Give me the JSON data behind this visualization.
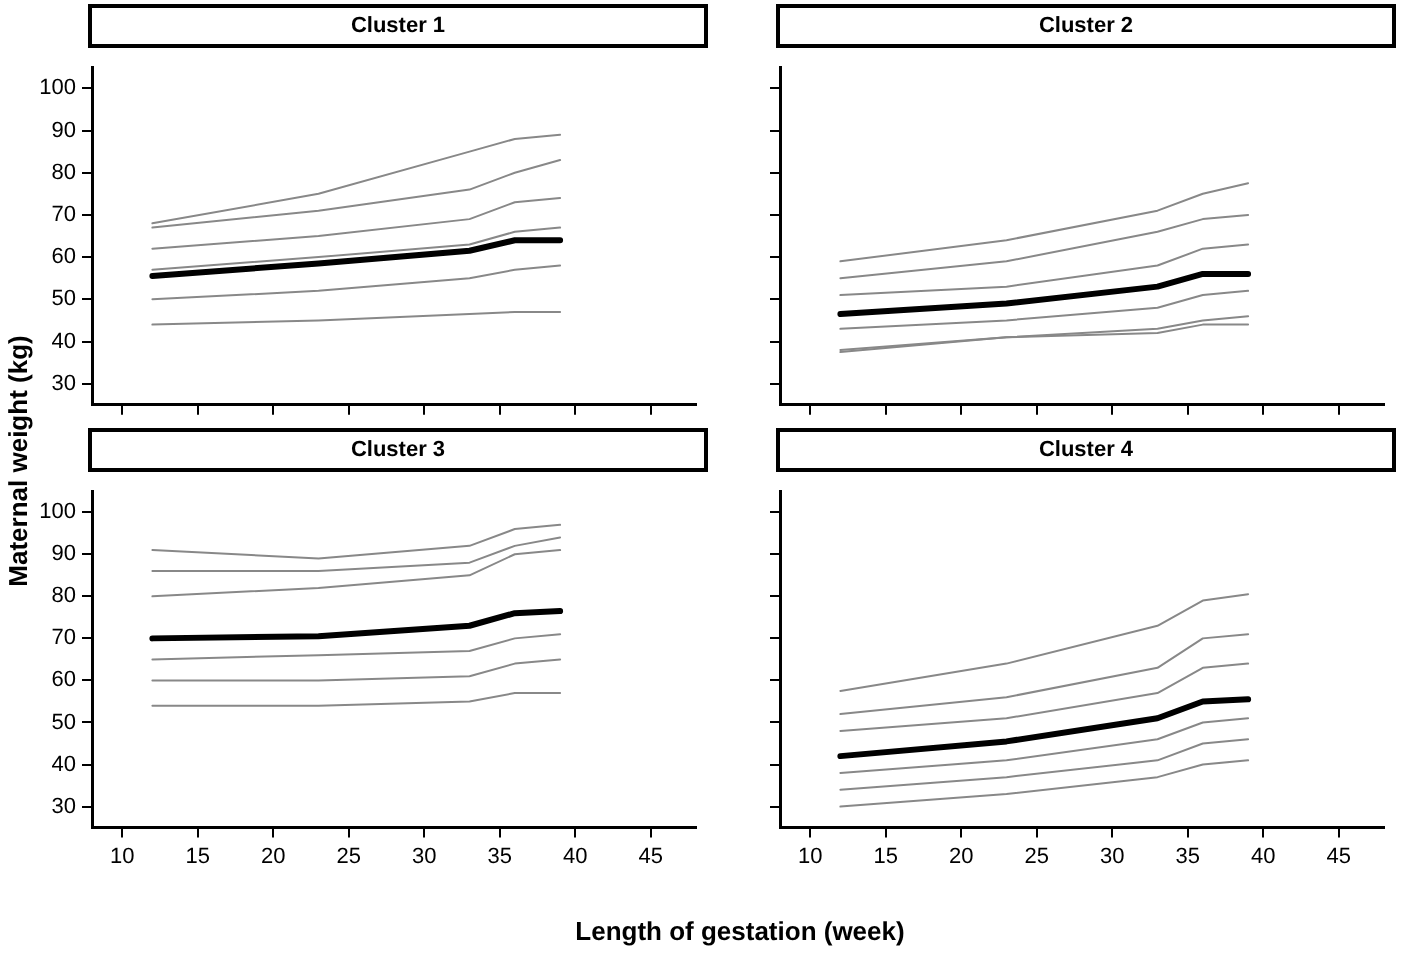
{
  "chart_data": [
    {
      "type": "line",
      "title": "Cluster 1",
      "ylabel": "Maternal weight (kg)",
      "x": [
        12,
        23,
        33,
        36,
        39
      ],
      "xlim": [
        8,
        48
      ],
      "xticks": [
        10,
        15,
        20,
        25,
        30,
        35,
        40,
        45
      ],
      "ylim": [
        25,
        105
      ],
      "yticks": [
        30,
        40,
        50,
        60,
        70,
        80,
        90,
        100
      ],
      "tick_labels": "y",
      "grid": false,
      "legend": false,
      "marker": "none",
      "line_style": "solid",
      "series": [
        {
          "color": "#888888",
          "values": [
            68,
            75,
            85,
            88,
            89
          ]
        },
        {
          "color": "#888888",
          "values": [
            67,
            71,
            76,
            80,
            83
          ]
        },
        {
          "color": "#888888",
          "values": [
            62,
            65,
            69,
            73,
            74
          ]
        },
        {
          "color": "#888888",
          "values": [
            57,
            60,
            63,
            66,
            67
          ]
        },
        {
          "color": "#888888",
          "values": [
            50,
            52,
            55,
            57,
            58
          ]
        },
        {
          "color": "#888888",
          "values": [
            44,
            45,
            46.5,
            47,
            47
          ]
        },
        {
          "color": "#000000",
          "values": [
            55.5,
            58.5,
            61.5,
            64,
            64
          ]
        }
      ]
    },
    {
      "type": "line",
      "title": "Cluster 2",
      "x": [
        12,
        23,
        33,
        36,
        39
      ],
      "xlim": [
        8,
        48
      ],
      "xticks": [
        10,
        15,
        20,
        25,
        30,
        35,
        40,
        45
      ],
      "ylim": [
        25,
        105
      ],
      "yticks": [
        30,
        40,
        50,
        60,
        70,
        80,
        90,
        100
      ],
      "tick_labels": false,
      "grid": false,
      "legend": false,
      "marker": "none",
      "line_style": "solid",
      "series": [
        {
          "color": "#888888",
          "values": [
            59,
            64,
            71,
            75,
            77.5
          ]
        },
        {
          "color": "#888888",
          "values": [
            55,
            59,
            66,
            69,
            70
          ]
        },
        {
          "color": "#888888",
          "values": [
            51,
            53,
            58,
            62,
            63
          ]
        },
        {
          "color": "#888888",
          "values": [
            43,
            45,
            48,
            51,
            52
          ]
        },
        {
          "color": "#888888",
          "values": [
            38,
            41,
            43,
            45,
            46
          ]
        },
        {
          "color": "#888888",
          "values": [
            37.5,
            41,
            42,
            44,
            44
          ]
        },
        {
          "color": "#000000",
          "values": [
            46.5,
            49,
            53,
            56,
            56
          ]
        }
      ]
    },
    {
      "type": "line",
      "title": "Cluster 3",
      "xlabel": "Length of gestation (week)",
      "x": [
        12,
        23,
        33,
        36,
        39
      ],
      "xlim": [
        8,
        48
      ],
      "xticks": [
        10,
        15,
        20,
        25,
        30,
        35,
        40,
        45
      ],
      "ylim": [
        25,
        105
      ],
      "yticks": [
        30,
        40,
        50,
        60,
        70,
        80,
        90,
        100
      ],
      "grid": false,
      "legend": false,
      "marker": "none",
      "line_style": "solid",
      "series": [
        {
          "color": "#888888",
          "values": [
            91,
            89,
            92,
            96,
            97
          ]
        },
        {
          "color": "#888888",
          "values": [
            86,
            86,
            88,
            92,
            94
          ]
        },
        {
          "color": "#888888",
          "values": [
            80,
            82,
            85,
            90,
            91
          ]
        },
        {
          "color": "#888888",
          "values": [
            65,
            66,
            67,
            70,
            71
          ]
        },
        {
          "color": "#888888",
          "values": [
            60,
            60,
            61,
            64,
            65
          ]
        },
        {
          "color": "#888888",
          "values": [
            54,
            54,
            55,
            57,
            57
          ]
        },
        {
          "color": "#000000",
          "values": [
            70,
            70.5,
            73,
            76,
            76.5
          ]
        }
      ]
    },
    {
      "type": "line",
      "title": "Cluster 4",
      "x": [
        12,
        23,
        33,
        36,
        39
      ],
      "xlim": [
        8,
        48
      ],
      "xticks": [
        10,
        15,
        20,
        25,
        30,
        35,
        40,
        45
      ],
      "ylim": [
        25,
        105
      ],
      "yticks": [
        30,
        40,
        50,
        60,
        70,
        80,
        90,
        100
      ],
      "tick_labels": "x",
      "grid": false,
      "legend": false,
      "marker": "none",
      "line_style": "solid",
      "series": [
        {
          "color": "#888888",
          "values": [
            57.5,
            64,
            73,
            79,
            80.5
          ]
        },
        {
          "color": "#888888",
          "values": [
            52,
            56,
            63,
            70,
            71
          ]
        },
        {
          "color": "#888888",
          "values": [
            48,
            51,
            57,
            63,
            64
          ]
        },
        {
          "color": "#888888",
          "values": [
            38,
            41,
            46,
            50,
            51
          ]
        },
        {
          "color": "#888888",
          "values": [
            34,
            37,
            41,
            45,
            46
          ]
        },
        {
          "color": "#888888",
          "values": [
            30,
            33,
            37,
            40,
            41
          ]
        },
        {
          "color": "#000000",
          "values": [
            42,
            45.5,
            51,
            55,
            55.5
          ]
        }
      ]
    }
  ]
}
